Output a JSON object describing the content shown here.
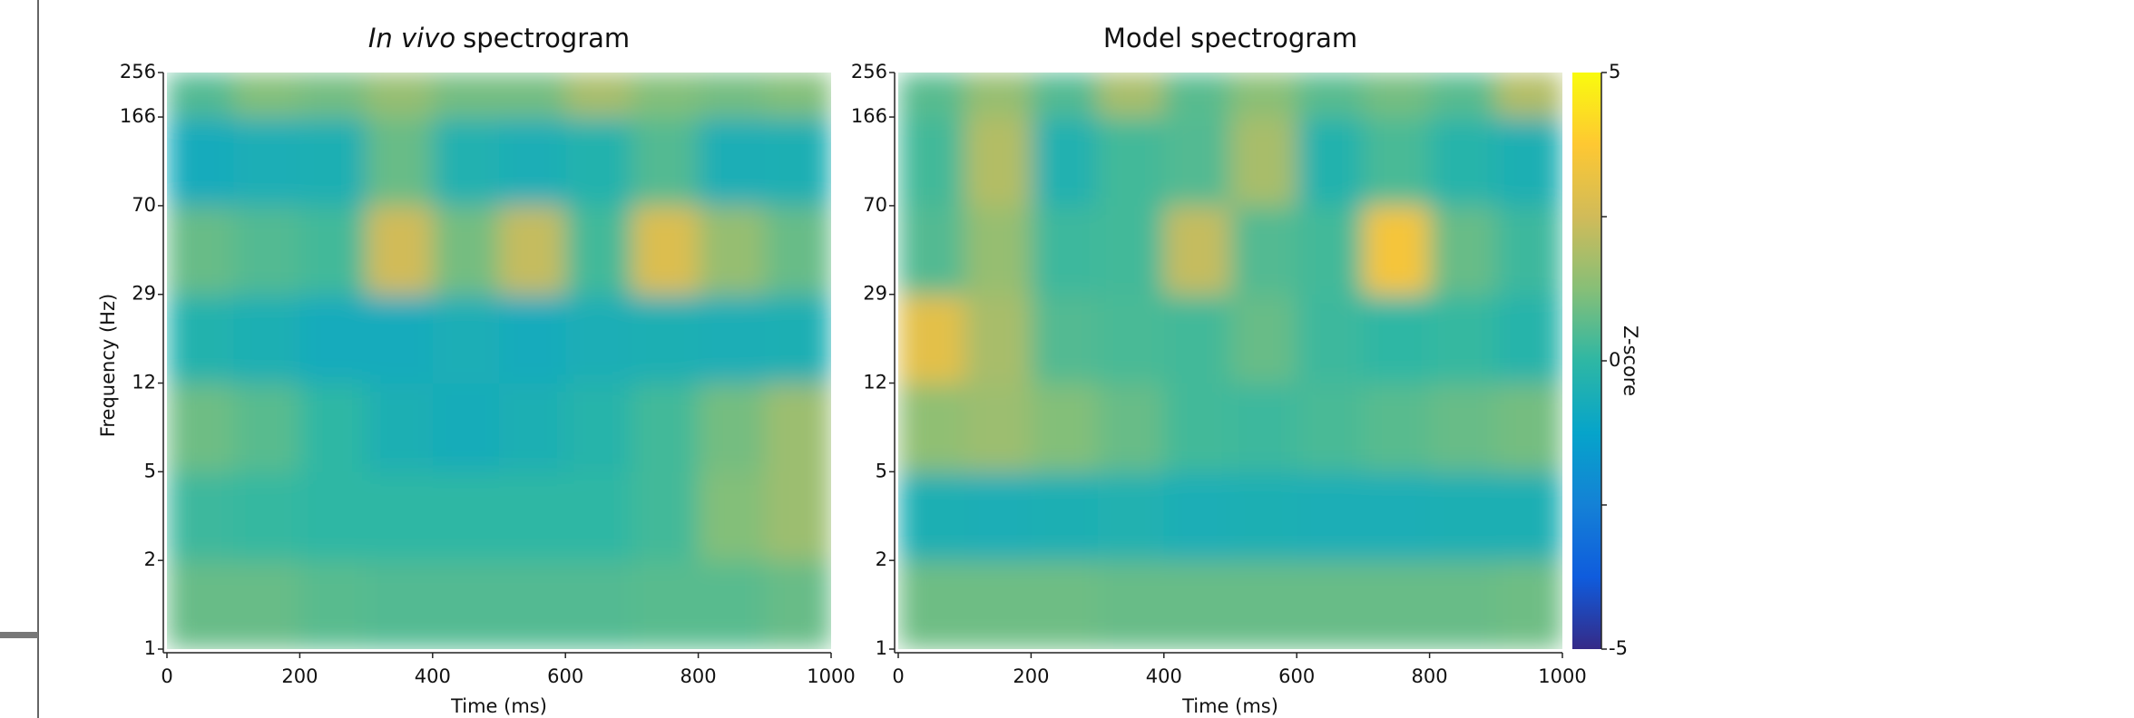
{
  "chart_data": [
    {
      "type": "heatmap",
      "title_parts": [
        "In vivo",
        "spectrogram"
      ],
      "x_label": "Time (ms)",
      "y_label": "Frequency (Hz)",
      "x_bins": [
        0,
        100,
        200,
        300,
        400,
        500,
        600,
        700,
        800,
        900,
        1000
      ],
      "xlim": [
        0,
        1000
      ],
      "xticks": [
        0,
        200,
        400,
        600,
        800,
        1000
      ],
      "ylim": [
        1,
        256
      ],
      "yticks": [
        1,
        2,
        5,
        12,
        29,
        70,
        166,
        256
      ],
      "zlim": [
        -5,
        5
      ],
      "colormap": [
        "#352a87",
        "#0f5cdd",
        "#1481d6",
        "#06a4ca",
        "#2eb7a4",
        "#87bf77",
        "#d1bb59",
        "#fec832",
        "#f9fb0e"
      ],
      "z": [
        [
          0.8,
          0.8,
          0.6,
          0.5,
          0.5,
          0.5,
          0.5,
          0.6,
          0.6,
          0.8
        ],
        [
          0.2,
          0.1,
          0,
          0,
          0,
          0,
          0,
          0.3,
          1.2,
          1.6
        ],
        [
          0.9,
          0.6,
          0,
          -0.5,
          -0.7,
          -0.5,
          -0.2,
          0.3,
          1.0,
          1.6
        ],
        [
          -0.3,
          -0.5,
          -0.8,
          -0.8,
          -0.6,
          -0.8,
          -0.6,
          -0.5,
          -0.6,
          -0.5
        ],
        [
          0.8,
          0.5,
          0.3,
          2.5,
          1.0,
          2.3,
          0.3,
          2.8,
          1.5,
          0.8
        ],
        [
          -0.8,
          -0.6,
          -0.5,
          0.8,
          -0.4,
          -0.6,
          -0.3,
          0.5,
          -0.6,
          -0.5
        ],
        [
          0.5,
          1.2,
          1.0,
          1.5,
          1.0,
          1.0,
          1.8,
          1.2,
          1.0,
          1.2
        ]
      ]
    },
    {
      "type": "heatmap",
      "title_parts": [
        "Model spectrogram"
      ],
      "x_label": "Time (ms)",
      "x_bins": [
        0,
        100,
        200,
        300,
        400,
        500,
        600,
        700,
        800,
        900,
        1000
      ],
      "xlim": [
        0,
        1000
      ],
      "xticks": [
        0,
        200,
        400,
        600,
        800,
        1000
      ],
      "ylim": [
        1,
        256
      ],
      "yticks": [
        1,
        2,
        5,
        12,
        29,
        70,
        166,
        256
      ],
      "zlim": [
        -5,
        5
      ],
      "colormap": [
        "#352a87",
        "#0f5cdd",
        "#1481d6",
        "#06a4ca",
        "#2eb7a4",
        "#87bf77",
        "#d1bb59",
        "#fec832",
        "#f9fb0e"
      ],
      "z": [
        [
          0.9,
          0.9,
          0.9,
          0.8,
          0.8,
          0.8,
          0.8,
          0.8,
          0.8,
          0.9
        ],
        [
          -0.5,
          -0.6,
          -0.5,
          -0.4,
          -0.6,
          -0.5,
          -0.6,
          -0.6,
          -0.5,
          -0.5
        ],
        [
          1.4,
          1.6,
          1.2,
          0.8,
          0.3,
          0.2,
          0.4,
          0.6,
          0.8,
          1.0
        ],
        [
          3.0,
          1.8,
          0.5,
          0.4,
          0.3,
          0.8,
          0.2,
          0.0,
          0.1,
          -0.2
        ],
        [
          0.5,
          1.5,
          0.2,
          0.3,
          2.3,
          0.5,
          0.3,
          3.5,
          0.8,
          0.2
        ],
        [
          0.3,
          2.0,
          -0.4,
          0.3,
          0.5,
          1.8,
          -0.3,
          0.4,
          -0.2,
          -0.5
        ],
        [
          0.6,
          1.5,
          0.5,
          1.8,
          0.6,
          1.3,
          0.6,
          1.0,
          0.6,
          2.0
        ]
      ],
      "colorbar": {
        "label": "Z-score",
        "ticks": [
          -5,
          0,
          5
        ],
        "minor_ticks": [
          -2.5,
          2.5
        ]
      }
    }
  ]
}
